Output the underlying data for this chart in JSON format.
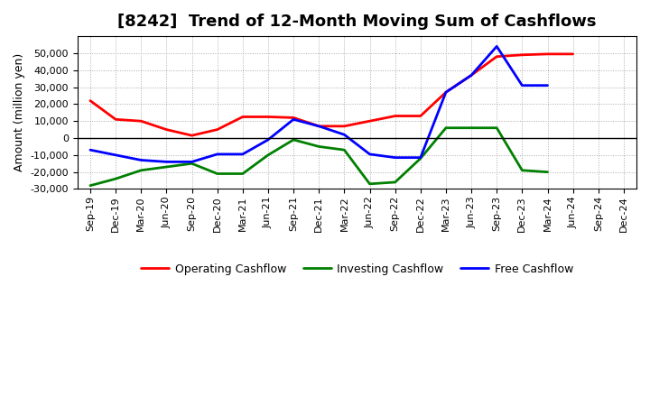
{
  "title": "[8242]  Trend of 12-Month Moving Sum of Cashflows",
  "ylabel": "Amount (million yen)",
  "xlabels": [
    "Sep-19",
    "Dec-19",
    "Mar-20",
    "Jun-20",
    "Sep-20",
    "Dec-20",
    "Mar-21",
    "Jun-21",
    "Sep-21",
    "Dec-21",
    "Mar-22",
    "Jun-22",
    "Sep-22",
    "Dec-22",
    "Mar-23",
    "Jun-23",
    "Sep-23",
    "Dec-23",
    "Mar-24",
    "Jun-24",
    "Sep-24",
    "Dec-24"
  ],
  "operating_cashflow": [
    22000,
    11000,
    10000,
    5000,
    1500,
    5000,
    12500,
    12500,
    12000,
    7000,
    7000,
    10000,
    13000,
    13000,
    27000,
    37000,
    48000,
    49000,
    49500,
    49500,
    null,
    null
  ],
  "investing_cashflow": [
    -28000,
    -24000,
    -19000,
    -17000,
    -15000,
    -21000,
    -21000,
    -10000,
    -1000,
    -5000,
    -7000,
    -27000,
    -26000,
    -12000,
    6000,
    6000,
    6000,
    -19000,
    -20000,
    null,
    null,
    null
  ],
  "free_cashflow": [
    -7000,
    -10000,
    -13000,
    -14000,
    -14000,
    -9500,
    -9500,
    -1000,
    11000,
    7000,
    2000,
    -9500,
    -11500,
    -11500,
    27000,
    37000,
    54000,
    31000,
    31000,
    null,
    null,
    null
  ],
  "ylim": [
    -30000,
    60000
  ],
  "yticks": [
    -30000,
    -20000,
    -10000,
    0,
    10000,
    20000,
    30000,
    40000,
    50000
  ],
  "operating_color": "#ff0000",
  "investing_color": "#008000",
  "free_color": "#0000ff",
  "background_color": "#ffffff",
  "grid_color": "#aaaaaa",
  "title_fontsize": 13,
  "label_fontsize": 9,
  "tick_fontsize": 8,
  "legend_fontsize": 9,
  "linewidth": 2.0
}
